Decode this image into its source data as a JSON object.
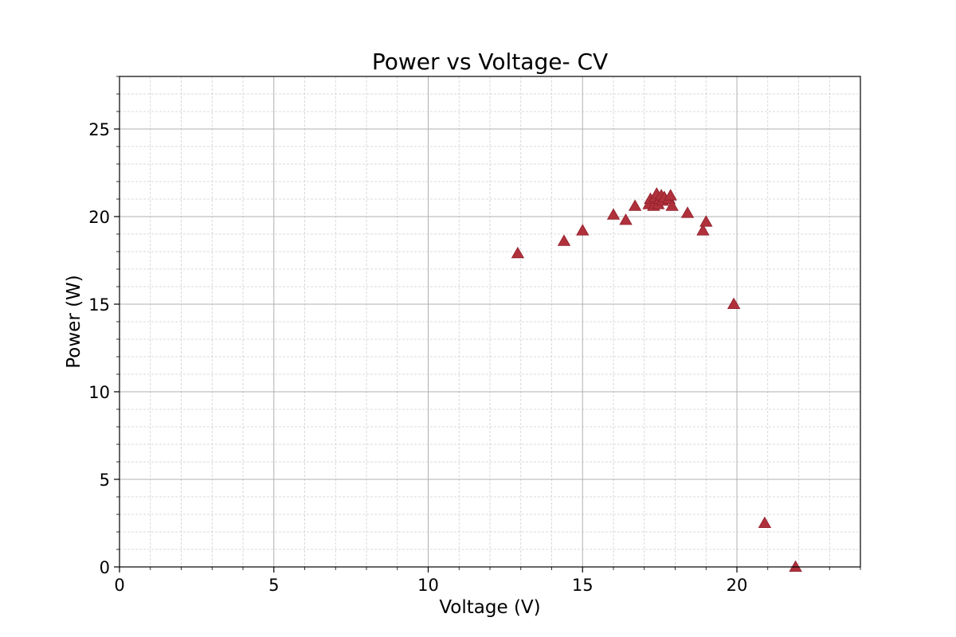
{
  "chart_data": {
    "type": "scatter",
    "title": "Power vs Voltage- CV",
    "xlabel": "Voltage (V)",
    "ylabel": "Power (W)",
    "xlim": [
      0,
      24
    ],
    "ylim": [
      0,
      28
    ],
    "xticks": [
      0,
      5,
      10,
      15,
      20
    ],
    "yticks": [
      0,
      5,
      10,
      15,
      20,
      25
    ],
    "x_minor_step": 1,
    "y_minor_step": 1,
    "grid": true,
    "marker": "triangle",
    "color": "#b0313c",
    "series": [
      {
        "points": [
          [
            12.9,
            17.9
          ],
          [
            14.4,
            18.6
          ],
          [
            15.0,
            19.2
          ],
          [
            16.0,
            20.1
          ],
          [
            16.4,
            19.8
          ],
          [
            16.7,
            20.6
          ],
          [
            17.15,
            20.7
          ],
          [
            17.2,
            21.0
          ],
          [
            17.3,
            20.6
          ],
          [
            17.35,
            21.1
          ],
          [
            17.4,
            21.3
          ],
          [
            17.45,
            20.7
          ],
          [
            17.5,
            21.0
          ],
          [
            17.55,
            21.2
          ],
          [
            17.6,
            20.9
          ],
          [
            17.65,
            21.1
          ],
          [
            17.8,
            21.0
          ],
          [
            17.85,
            21.2
          ],
          [
            17.9,
            20.6
          ],
          [
            18.4,
            20.2
          ],
          [
            18.9,
            19.2
          ],
          [
            19.0,
            19.7
          ],
          [
            19.9,
            15.0
          ],
          [
            20.9,
            2.5
          ],
          [
            21.9,
            0.0
          ]
        ]
      }
    ]
  }
}
